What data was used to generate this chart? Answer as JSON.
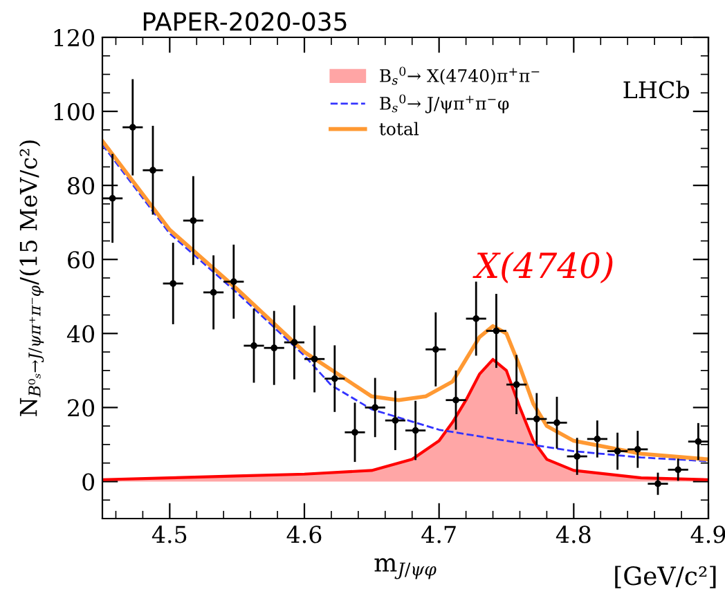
{
  "chart_data": {
    "type": "scatter",
    "xlabel": "m$_{J/ψφ}$",
    "ylabel": "N$_{B⁰ₛ→J/ψπ⁺π⁻φ}$/(15 MeV/c²)",
    "xlim": [
      4.45,
      4.9
    ],
    "xticks": [
      4.5,
      4.6,
      4.7,
      4.8,
      4.9
    ],
    "ylim": [
      -10,
      120
    ],
    "yticks": [
      0,
      20,
      40,
      60,
      80,
      100,
      120
    ],
    "grid": false,
    "legend": "top",
    "annotations": [
      "PAPER-2020-035",
      "LHCb",
      "[GeV/c²]",
      "X(4740)"
    ],
    "series": [
      {
        "type": "area",
        "name": "B$_{s}$$^{0}$→ X(4740)π$^{+}$π$^{−}$",
        "color": "#ff0000",
        "x": [
          4.45,
          4.5,
          4.55,
          4.6,
          4.65,
          4.68,
          4.7,
          4.71,
          4.72,
          4.73,
          4.74,
          4.75,
          4.76,
          4.77,
          4.78,
          4.8,
          4.85,
          4.9
        ],
        "values": [
          0.5,
          1,
          1.5,
          2,
          3,
          6,
          11,
          16,
          22,
          29,
          33,
          30,
          20,
          11,
          6,
          3,
          1,
          0.5
        ]
      },
      {
        "type": "line",
        "name": "B$_{s}$$^{0}$→ J/ψπ$^{+}$π$^{−}$φ",
        "color": "#3333ff",
        "line_style": "dashed",
        "x": [
          4.45,
          4.5,
          4.55,
          4.6,
          4.62,
          4.65,
          4.7,
          4.75,
          4.8,
          4.85,
          4.9
        ],
        "values": [
          91,
          67,
          51,
          34,
          26,
          19.5,
          14,
          11,
          8.2,
          6.5,
          5.5
        ]
      },
      {
        "type": "line",
        "name": "total",
        "color": "#ff9933",
        "x": [
          4.45,
          4.5,
          4.55,
          4.6,
          4.65,
          4.67,
          4.69,
          4.71,
          4.72,
          4.73,
          4.74,
          4.75,
          4.76,
          4.77,
          4.78,
          4.8,
          4.85,
          4.9
        ],
        "values": [
          92,
          68,
          52,
          35,
          23,
          22,
          23,
          27,
          33,
          39,
          42,
          40,
          31,
          21,
          15,
          11,
          7.5,
          6
        ]
      },
      {
        "color": "#000000",
        "marker": "circle",
        "x": [
          4.4575,
          4.4725,
          4.4875,
          4.5025,
          4.5175,
          4.5325,
          4.5475,
          4.5625,
          4.5775,
          4.5925,
          4.6075,
          4.6225,
          4.6375,
          4.6525,
          4.6675,
          4.6825,
          4.6975,
          4.7125,
          4.7275,
          4.7425,
          4.7575,
          4.7725,
          4.7875,
          4.8025,
          4.8175,
          4.8325,
          4.8475,
          4.8625,
          4.8775,
          4.8925
        ],
        "values": [
          76.5,
          95.7,
          84.1,
          53.5,
          70.5,
          51.1,
          54,
          36.7,
          36.1,
          37.6,
          33.1,
          27.8,
          13.3,
          20,
          16.5,
          13.8,
          35.7,
          22,
          44,
          40.7,
          26.2,
          16.9,
          15.9,
          6.8,
          11.5,
          8.2,
          8.7,
          -0.6,
          3.2,
          10.8
        ],
        "errors": [
          12,
          13,
          12,
          11,
          12,
          10,
          10,
          10,
          10,
          10,
          9,
          9,
          8,
          8,
          8,
          8,
          10,
          8,
          10,
          10,
          8,
          7,
          7,
          5,
          5,
          5,
          5,
          3,
          3,
          5
        ],
        "xerrors": [
          0.0075,
          0.0075,
          0.0075,
          0.0075,
          0.0075,
          0.0075,
          0.0075,
          0.0075,
          0.0075,
          0.0075,
          0.0075,
          0.0075,
          0.0075,
          0.0075,
          0.0075,
          0.0075,
          0.0075,
          0.0075,
          0.0075,
          0.0075,
          0.0075,
          0.0075,
          0.0075,
          0.0075,
          0.0075,
          0.0075,
          0.0075,
          0.0075,
          0.0075,
          0.0075
        ]
      }
    ]
  }
}
